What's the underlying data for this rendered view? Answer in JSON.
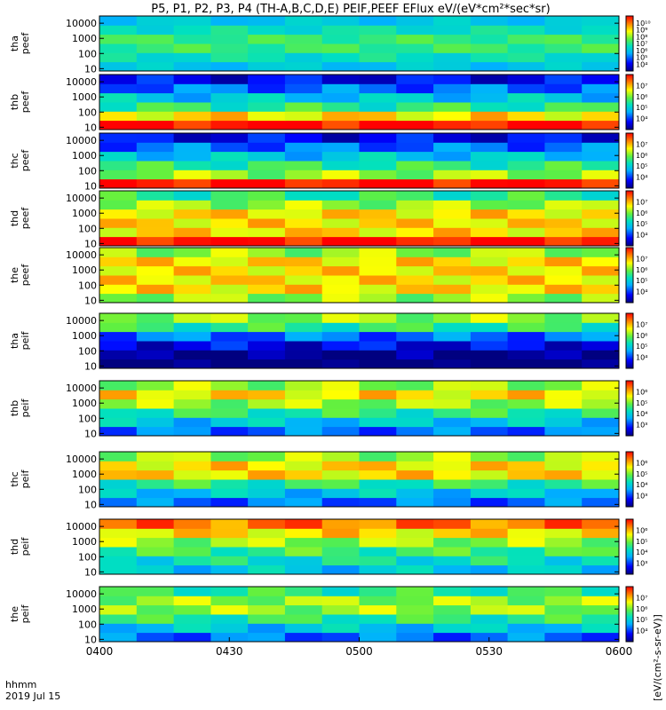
{
  "chart_data": {
    "type": "heatmap",
    "title": "P5, P1, P2, P3, P4 (TH-A,B,C,D,E) PEIF,PEEF EFlux eV/(eV*cm²*sec*sr)",
    "xlabel": "",
    "x_label_lines": [
      "hhmm",
      "2019 Jul 15"
    ],
    "x_ticks": [
      "0400",
      "0430",
      "0500",
      "0530",
      "0600"
    ],
    "x_range": [
      "0400",
      "0600"
    ],
    "y_ticks": [
      "10",
      "100",
      "1000",
      "10000"
    ],
    "y_range": [
      7,
      30000
    ],
    "y_scale": "log",
    "colorbar_unit": "[eV/(cm²-s-sr-eV)]",
    "panels": [
      {
        "id": "tha_peef",
        "ylabel": [
          "tha",
          "peef"
        ],
        "colorbar_ticks": [
          "10⁴",
          "10⁵",
          "10⁶",
          "10⁷",
          "10⁸",
          "10⁹",
          "10¹⁰"
        ],
        "colorbar_range_exp": [
          3.5,
          10.2
        ],
        "band_values": [
          6,
          6.5,
          7,
          7,
          6.5,
          6
        ]
      },
      {
        "id": "thb_peef",
        "ylabel": [
          "thb",
          "peef"
        ],
        "colorbar_ticks": [
          "10⁴",
          "10⁵",
          "10⁶",
          "10⁷"
        ],
        "colorbar_range_exp": [
          3.5,
          7.5
        ],
        "band_values": [
          7.5,
          6.5,
          5.5,
          5,
          4.5,
          4
        ]
      },
      {
        "id": "thc_peef",
        "ylabel": [
          "thc",
          "peef"
        ],
        "colorbar_ticks": [
          "10⁴",
          "10⁵",
          "10⁶",
          "10⁷"
        ],
        "colorbar_range_exp": [
          3.5,
          7.5
        ],
        "band_values": [
          7.5,
          6,
          5.5,
          5,
          4.5,
          4
        ]
      },
      {
        "id": "thd_peef",
        "ylabel": [
          "thd",
          "peef"
        ],
        "colorbar_ticks": [
          "10⁴",
          "10⁵",
          "10⁶",
          "10⁷"
        ],
        "colorbar_range_exp": [
          3.5,
          7.5
        ],
        "band_values": [
          7.5,
          6.5,
          6.5,
          6.5,
          6,
          5.5
        ]
      },
      {
        "id": "the_peef",
        "ylabel": [
          "the",
          "peef"
        ],
        "colorbar_ticks": [
          "10⁴",
          "10⁵",
          "10⁶",
          "10⁷"
        ],
        "colorbar_range_exp": [
          3.5,
          7.5
        ],
        "band_values": [
          6,
          6.5,
          6.5,
          6.5,
          6.5,
          6
        ]
      },
      {
        "id": "tha_peif",
        "ylabel": [
          "tha",
          "peif"
        ],
        "colorbar_ticks": [
          "10⁴",
          "10⁵",
          "10⁶",
          "10⁷"
        ],
        "colorbar_range_exp": [
          3.5,
          7.5
        ],
        "band_values": [
          3.3,
          3.5,
          4,
          4.5,
          5.5,
          6
        ]
      },
      {
        "id": "thb_peif",
        "ylabel": [
          "thb",
          "peif"
        ],
        "colorbar_ticks": [
          "10³",
          "10⁴",
          "10⁵",
          "10⁶"
        ],
        "colorbar_range_exp": [
          2.5,
          6.5
        ],
        "band_values": [
          3.5,
          4,
          4.5,
          5,
          5.5,
          5
        ]
      },
      {
        "id": "thc_peif",
        "ylabel": [
          "thc",
          "peif"
        ],
        "colorbar_ticks": [
          "10³",
          "10⁴",
          "10⁵",
          "10⁶"
        ],
        "colorbar_range_exp": [
          2.5,
          6.5
        ],
        "band_values": [
          3.5,
          4,
          4.5,
          5.5,
          5.5,
          5
        ]
      },
      {
        "id": "thd_peif",
        "ylabel": [
          "thd",
          "peif"
        ],
        "colorbar_ticks": [
          "10³",
          "10⁴",
          "10⁵",
          "10⁶"
        ],
        "colorbar_range_exp": [
          2.5,
          6.5
        ],
        "band_values": [
          4,
          4.3,
          4.6,
          5,
          5.5,
          6
        ]
      },
      {
        "id": "the_peif",
        "ylabel": [
          "the",
          "peif"
        ],
        "colorbar_ticks": [
          "10⁴",
          "10⁵",
          "10⁶",
          "10⁷"
        ],
        "colorbar_range_exp": [
          3.5,
          7.5
        ],
        "band_values": [
          4.5,
          5,
          5.5,
          6,
          6,
          5.5
        ]
      }
    ]
  }
}
